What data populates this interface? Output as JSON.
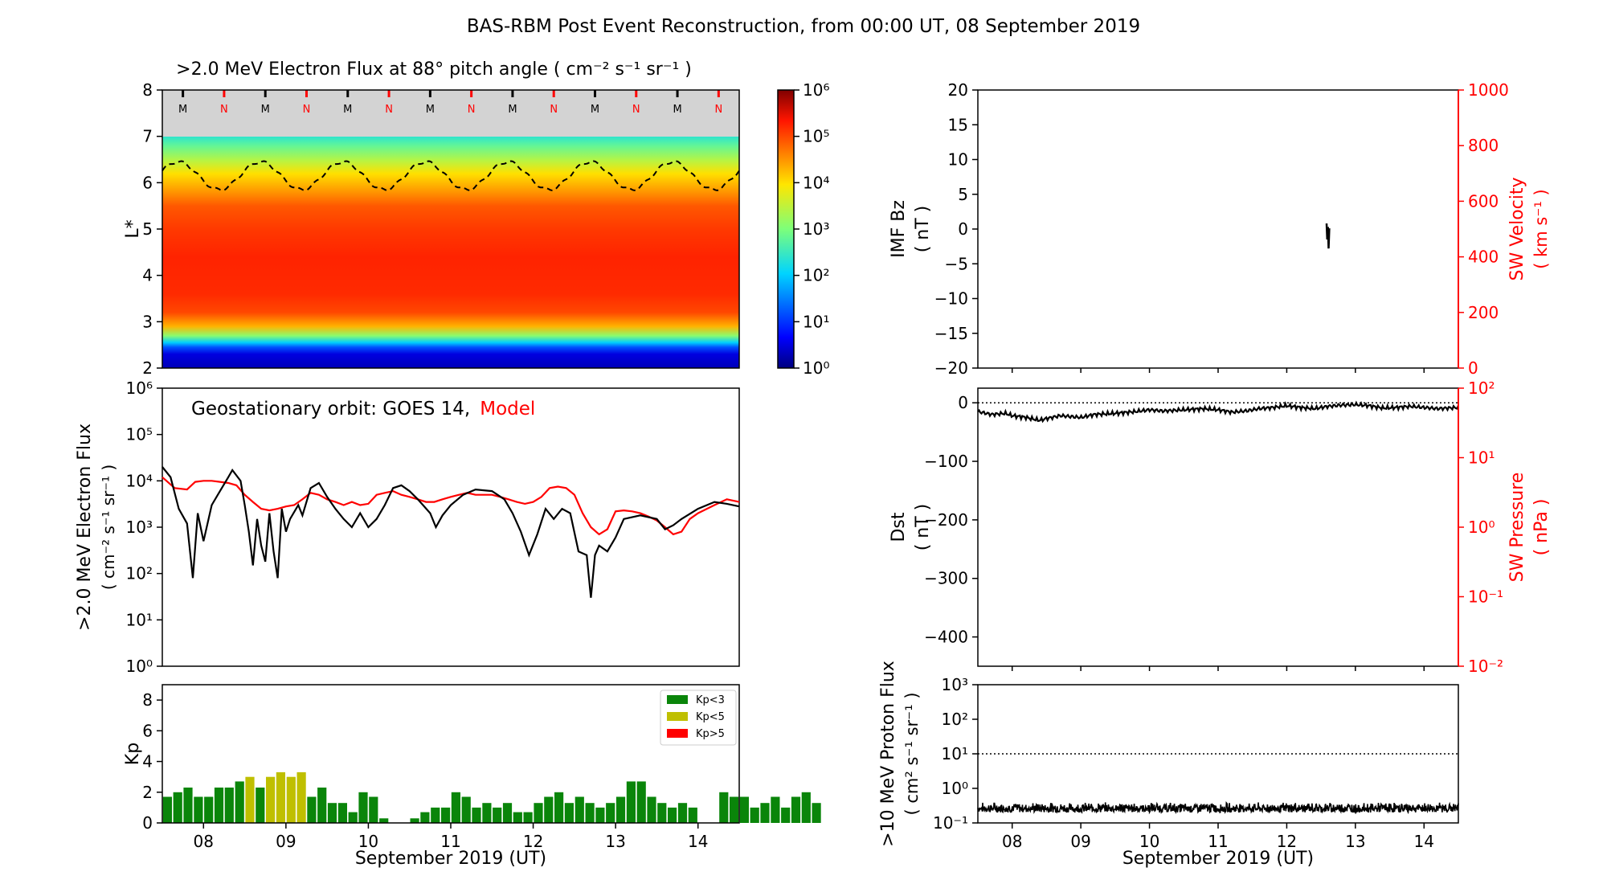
{
  "title": "BAS-RBM Post Event Reconstruction, from 00:00 UT, 08 September 2019",
  "colors": {
    "red": "#ff0000",
    "black": "#000000",
    "kp_green": "#0a850a",
    "kp_yellow": "#bfbf00",
    "kp_red": "#ff0000"
  },
  "x_axis": {
    "label": "September 2019 (UT)",
    "ticks": [
      "08",
      "09",
      "10",
      "11",
      "12",
      "13",
      "14"
    ],
    "range_days": [
      -0.5,
      6.5
    ]
  },
  "chart_data": [
    {
      "type": "heatmap",
      "title": ">2.0 MeV Electron Flux at 88° pitch angle ( cm⁻² s⁻¹ sr⁻¹ )",
      "ylabel": "L*",
      "ylim": [
        2,
        8
      ],
      "yticks": [
        "2",
        "3",
        "4",
        "5",
        "6",
        "7",
        "8"
      ],
      "colorbar": {
        "scale": "log",
        "range": [
          1,
          1000000
        ],
        "ticks": [
          "10⁰",
          "10¹",
          "10²",
          "10³",
          "10⁴",
          "10⁵",
          "10⁶"
        ]
      },
      "mn_labels": [
        "M",
        "N",
        "M",
        "N",
        "M",
        "N",
        "M",
        "N",
        "M",
        "N",
        "M",
        "N",
        "M",
        "N"
      ],
      "magnetopause_dashed": {
        "min_l": 5.85,
        "max_l": 6.45,
        "period_days": 1
      },
      "flux_profile": [
        [
          2.0,
          0.3
        ],
        [
          2.3,
          0.5
        ],
        [
          2.45,
          1.2
        ],
        [
          2.55,
          2.0
        ],
        [
          2.7,
          3.1
        ],
        [
          2.9,
          4.3
        ],
        [
          3.2,
          5.0
        ],
        [
          3.6,
          5.2
        ],
        [
          4.4,
          5.25
        ],
        [
          5.0,
          5.1
        ],
        [
          5.5,
          4.9
        ],
        [
          5.8,
          4.5
        ],
        [
          6.2,
          4.0
        ],
        [
          6.5,
          3.4
        ],
        [
          6.8,
          2.8
        ],
        [
          7.0,
          2.4
        ]
      ]
    },
    {
      "type": "line",
      "ylabel": ">2.0 MeV Electron Flux",
      "ylabel_units": "( cm⁻² s⁻¹ sr⁻¹ )",
      "yscale": "log",
      "ylim": [
        1,
        1000000
      ],
      "yticks": [
        "10⁰",
        "10¹",
        "10²",
        "10³",
        "10⁴",
        "10⁵",
        "10⁶"
      ],
      "annotation": "Geostationary orbit:   GOES 14,",
      "annotation_red": "Model",
      "series": [
        {
          "name": "GOES 14",
          "color": "#000000",
          "points": [
            [
              -0.5,
              20000
            ],
            [
              -0.4,
              12000
            ],
            [
              -0.3,
              2500
            ],
            [
              -0.2,
              1200
            ],
            [
              -0.13,
              80
            ],
            [
              -0.07,
              2000
            ],
            [
              0.0,
              500
            ],
            [
              0.1,
              3000
            ],
            [
              0.2,
              6000
            ],
            [
              0.3,
              12000
            ],
            [
              0.35,
              17000
            ],
            [
              0.45,
              10000
            ],
            [
              0.5,
              3000
            ],
            [
              0.55,
              800
            ],
            [
              0.6,
              150
            ],
            [
              0.65,
              1500
            ],
            [
              0.7,
              400
            ],
            [
              0.75,
              180
            ],
            [
              0.8,
              2000
            ],
            [
              0.85,
              300
            ],
            [
              0.9,
              80
            ],
            [
              0.95,
              2500
            ],
            [
              1.0,
              800
            ],
            [
              1.05,
              1500
            ],
            [
              1.15,
              3000
            ],
            [
              1.2,
              1800
            ],
            [
              1.3,
              7000
            ],
            [
              1.4,
              9000
            ],
            [
              1.5,
              4500
            ],
            [
              1.6,
              2500
            ],
            [
              1.7,
              1500
            ],
            [
              1.8,
              1000
            ],
            [
              1.9,
              2000
            ],
            [
              2.0,
              1000
            ],
            [
              2.1,
              1500
            ],
            [
              2.2,
              3000
            ],
            [
              2.3,
              7000
            ],
            [
              2.4,
              8000
            ],
            [
              2.5,
              6000
            ],
            [
              2.6,
              4000
            ],
            [
              2.75,
              2000
            ],
            [
              2.82,
              1000
            ],
            [
              2.9,
              1800
            ],
            [
              3.0,
              3000
            ],
            [
              3.15,
              5000
            ],
            [
              3.3,
              6500
            ],
            [
              3.5,
              6000
            ],
            [
              3.65,
              4000
            ],
            [
              3.75,
              2000
            ],
            [
              3.85,
              800
            ],
            [
              3.95,
              250
            ],
            [
              4.05,
              700
            ],
            [
              4.15,
              2500
            ],
            [
              4.25,
              1500
            ],
            [
              4.35,
              2500
            ],
            [
              4.45,
              2000
            ],
            [
              4.55,
              300
            ],
            [
              4.65,
              250
            ],
            [
              4.7,
              30
            ],
            [
              4.75,
              250
            ],
            [
              4.8,
              400
            ],
            [
              4.9,
              300
            ],
            [
              5.0,
              600
            ],
            [
              5.1,
              1500
            ],
            [
              5.3,
              1800
            ],
            [
              5.5,
              1500
            ],
            [
              5.6,
              900
            ],
            [
              5.7,
              1100
            ],
            [
              5.8,
              1500
            ],
            [
              6.0,
              2500
            ],
            [
              6.2,
              3500
            ],
            [
              6.35,
              3200
            ],
            [
              6.5,
              2800
            ]
          ]
        },
        {
          "name": "Model",
          "color": "#ff0000",
          "points": [
            [
              -0.5,
              12000
            ],
            [
              -0.35,
              7000
            ],
            [
              -0.2,
              6500
            ],
            [
              -0.1,
              9500
            ],
            [
              0.0,
              10000
            ],
            [
              0.1,
              10000
            ],
            [
              0.2,
              9500
            ],
            [
              0.3,
              9000
            ],
            [
              0.4,
              8000
            ],
            [
              0.5,
              5000
            ],
            [
              0.6,
              3500
            ],
            [
              0.7,
              2500
            ],
            [
              0.8,
              2300
            ],
            [
              0.9,
              2500
            ],
            [
              1.0,
              2800
            ],
            [
              1.1,
              3000
            ],
            [
              1.2,
              4000
            ],
            [
              1.3,
              5500
            ],
            [
              1.4,
              5000
            ],
            [
              1.5,
              4000
            ],
            [
              1.6,
              3500
            ],
            [
              1.7,
              3000
            ],
            [
              1.8,
              3500
            ],
            [
              1.9,
              3000
            ],
            [
              2.0,
              3200
            ],
            [
              2.1,
              5000
            ],
            [
              2.2,
              5500
            ],
            [
              2.3,
              6000
            ],
            [
              2.4,
              5000
            ],
            [
              2.5,
              4500
            ],
            [
              2.6,
              4000
            ],
            [
              2.7,
              3500
            ],
            [
              2.8,
              3500
            ],
            [
              2.9,
              4000
            ],
            [
              3.0,
              4500
            ],
            [
              3.1,
              5000
            ],
            [
              3.2,
              5500
            ],
            [
              3.3,
              5000
            ],
            [
              3.4,
              5000
            ],
            [
              3.5,
              5000
            ],
            [
              3.6,
              4500
            ],
            [
              3.7,
              4000
            ],
            [
              3.8,
              3500
            ],
            [
              3.9,
              3200
            ],
            [
              4.0,
              3500
            ],
            [
              4.1,
              4500
            ],
            [
              4.2,
              7000
            ],
            [
              4.3,
              7500
            ],
            [
              4.4,
              7000
            ],
            [
              4.5,
              5000
            ],
            [
              4.6,
              2000
            ],
            [
              4.7,
              1000
            ],
            [
              4.8,
              700
            ],
            [
              4.9,
              900
            ],
            [
              5.0,
              2200
            ],
            [
              5.1,
              2300
            ],
            [
              5.2,
              2200
            ],
            [
              5.3,
              2000
            ],
            [
              5.4,
              1700
            ],
            [
              5.5,
              1400
            ],
            [
              5.6,
              1000
            ],
            [
              5.7,
              700
            ],
            [
              5.8,
              800
            ],
            [
              5.9,
              1500
            ],
            [
              6.0,
              2000
            ],
            [
              6.2,
              3000
            ],
            [
              6.35,
              4000
            ],
            [
              6.5,
              3500
            ]
          ]
        }
      ]
    },
    {
      "type": "bar",
      "ylabel": "Kp",
      "ylim": [
        0,
        9
      ],
      "yticks": [
        "0",
        "2",
        "4",
        "6",
        "8"
      ],
      "legend": {
        "placement": "top-right",
        "entries": [
          {
            "label": "Kp<3",
            "color": "#0a850a"
          },
          {
            "label": "Kp<5",
            "color": "#bfbf00"
          },
          {
            "label": "Kp>5",
            "color": "#ff0000"
          }
        ]
      },
      "bar_width_hours": 3,
      "start_day": -0.5,
      "values": [
        1.7,
        2.0,
        2.3,
        1.7,
        1.7,
        2.3,
        2.3,
        2.7,
        3.0,
        2.3,
        3.0,
        3.3,
        3.0,
        3.3,
        1.7,
        2.3,
        1.3,
        1.3,
        0.7,
        2.0,
        1.7,
        0.3,
        0,
        0,
        0.3,
        0.7,
        1.0,
        1.0,
        2.0,
        1.7,
        1.0,
        1.3,
        1.0,
        1.3,
        0.7,
        0.7,
        1.3,
        1.7,
        2.0,
        1.3,
        1.7,
        1.3,
        1.0,
        1.3,
        1.7,
        2.7,
        2.7,
        1.7,
        1.3,
        1.0,
        1.3,
        1.0,
        0,
        0,
        2.0,
        1.7,
        1.7,
        1.0,
        1.3,
        1.7,
        1.0,
        1.7,
        2.0,
        1.3
      ]
    },
    {
      "type": "line",
      "ylabel": "IMF Bz",
      "ylabel_units": "( nT )",
      "ylim": [
        -20,
        20
      ],
      "yticks": [
        "−20",
        "−15",
        "−10",
        "−5",
        "0",
        "5",
        "10",
        "15",
        "20"
      ],
      "y2label": "SW Velocity",
      "y2label_units": "( km s⁻¹ )",
      "y2lim": [
        0,
        1000
      ],
      "y2ticks": [
        "0",
        "200",
        "400",
        "600",
        "800",
        "1000"
      ],
      "series": [
        {
          "name": "IMF Bz",
          "color": "#000000",
          "points": [
            [
              4.58,
              0.8
            ],
            [
              4.59,
              -1.5
            ],
            [
              4.6,
              0.3
            ],
            [
              4.61,
              -2.8
            ],
            [
              4.62,
              0.1
            ]
          ]
        }
      ]
    },
    {
      "type": "line",
      "ylabel": "Dst",
      "ylabel_units": "( nT )",
      "ylim": [
        -450,
        25
      ],
      "yticks": [
        "0",
        "−100",
        "−200",
        "−300",
        "−400"
      ],
      "y2label": "SW Pressure",
      "y2label_units": "( nPa )",
      "y2scale": "log",
      "y2lim": [
        0.01,
        100
      ],
      "y2ticks": [
        "10⁻²",
        "10⁻¹",
        "10⁰",
        "10¹",
        "10²"
      ],
      "reference_line": 0,
      "series": [
        {
          "name": "Dst",
          "color": "#000000",
          "points": [
            [
              -0.5,
              -15
            ],
            [
              -0.3,
              -20
            ],
            [
              -0.1,
              -18
            ],
            [
              0.0,
              -22
            ],
            [
              0.2,
              -25
            ],
            [
              0.4,
              -30
            ],
            [
              0.5,
              -27
            ],
            [
              0.7,
              -22
            ],
            [
              1.0,
              -25
            ],
            [
              1.2,
              -20
            ],
            [
              1.5,
              -18
            ],
            [
              1.8,
              -15
            ],
            [
              2.0,
              -12
            ],
            [
              2.2,
              -14
            ],
            [
              2.5,
              -12
            ],
            [
              2.8,
              -10
            ],
            [
              3.0,
              -12
            ],
            [
              3.2,
              -16
            ],
            [
              3.4,
              -14
            ],
            [
              3.6,
              -10
            ],
            [
              3.8,
              -8
            ],
            [
              4.0,
              -5
            ],
            [
              4.2,
              -8
            ],
            [
              4.4,
              -10
            ],
            [
              4.6,
              -6
            ],
            [
              4.8,
              -4
            ],
            [
              5.0,
              -3
            ],
            [
              5.2,
              -5
            ],
            [
              5.4,
              -9
            ],
            [
              5.6,
              -8
            ],
            [
              5.8,
              -6
            ],
            [
              6.0,
              -8
            ],
            [
              6.2,
              -10
            ],
            [
              6.5,
              -8
            ]
          ]
        }
      ]
    },
    {
      "type": "line",
      "ylabel": ">10 MeV Proton Flux",
      "ylabel_units": "( cm² s⁻¹ sr⁻¹ )",
      "yscale": "log",
      "ylim": [
        0.1,
        1000
      ],
      "yticks": [
        "10⁻¹",
        "10⁰",
        "10¹",
        "10²",
        "10³"
      ],
      "threshold": 10,
      "series": [
        {
          "name": ">10 MeV Proton Flux",
          "color": "#000000",
          "baseline": 0.2,
          "noise_max": 0.4
        }
      ]
    }
  ]
}
